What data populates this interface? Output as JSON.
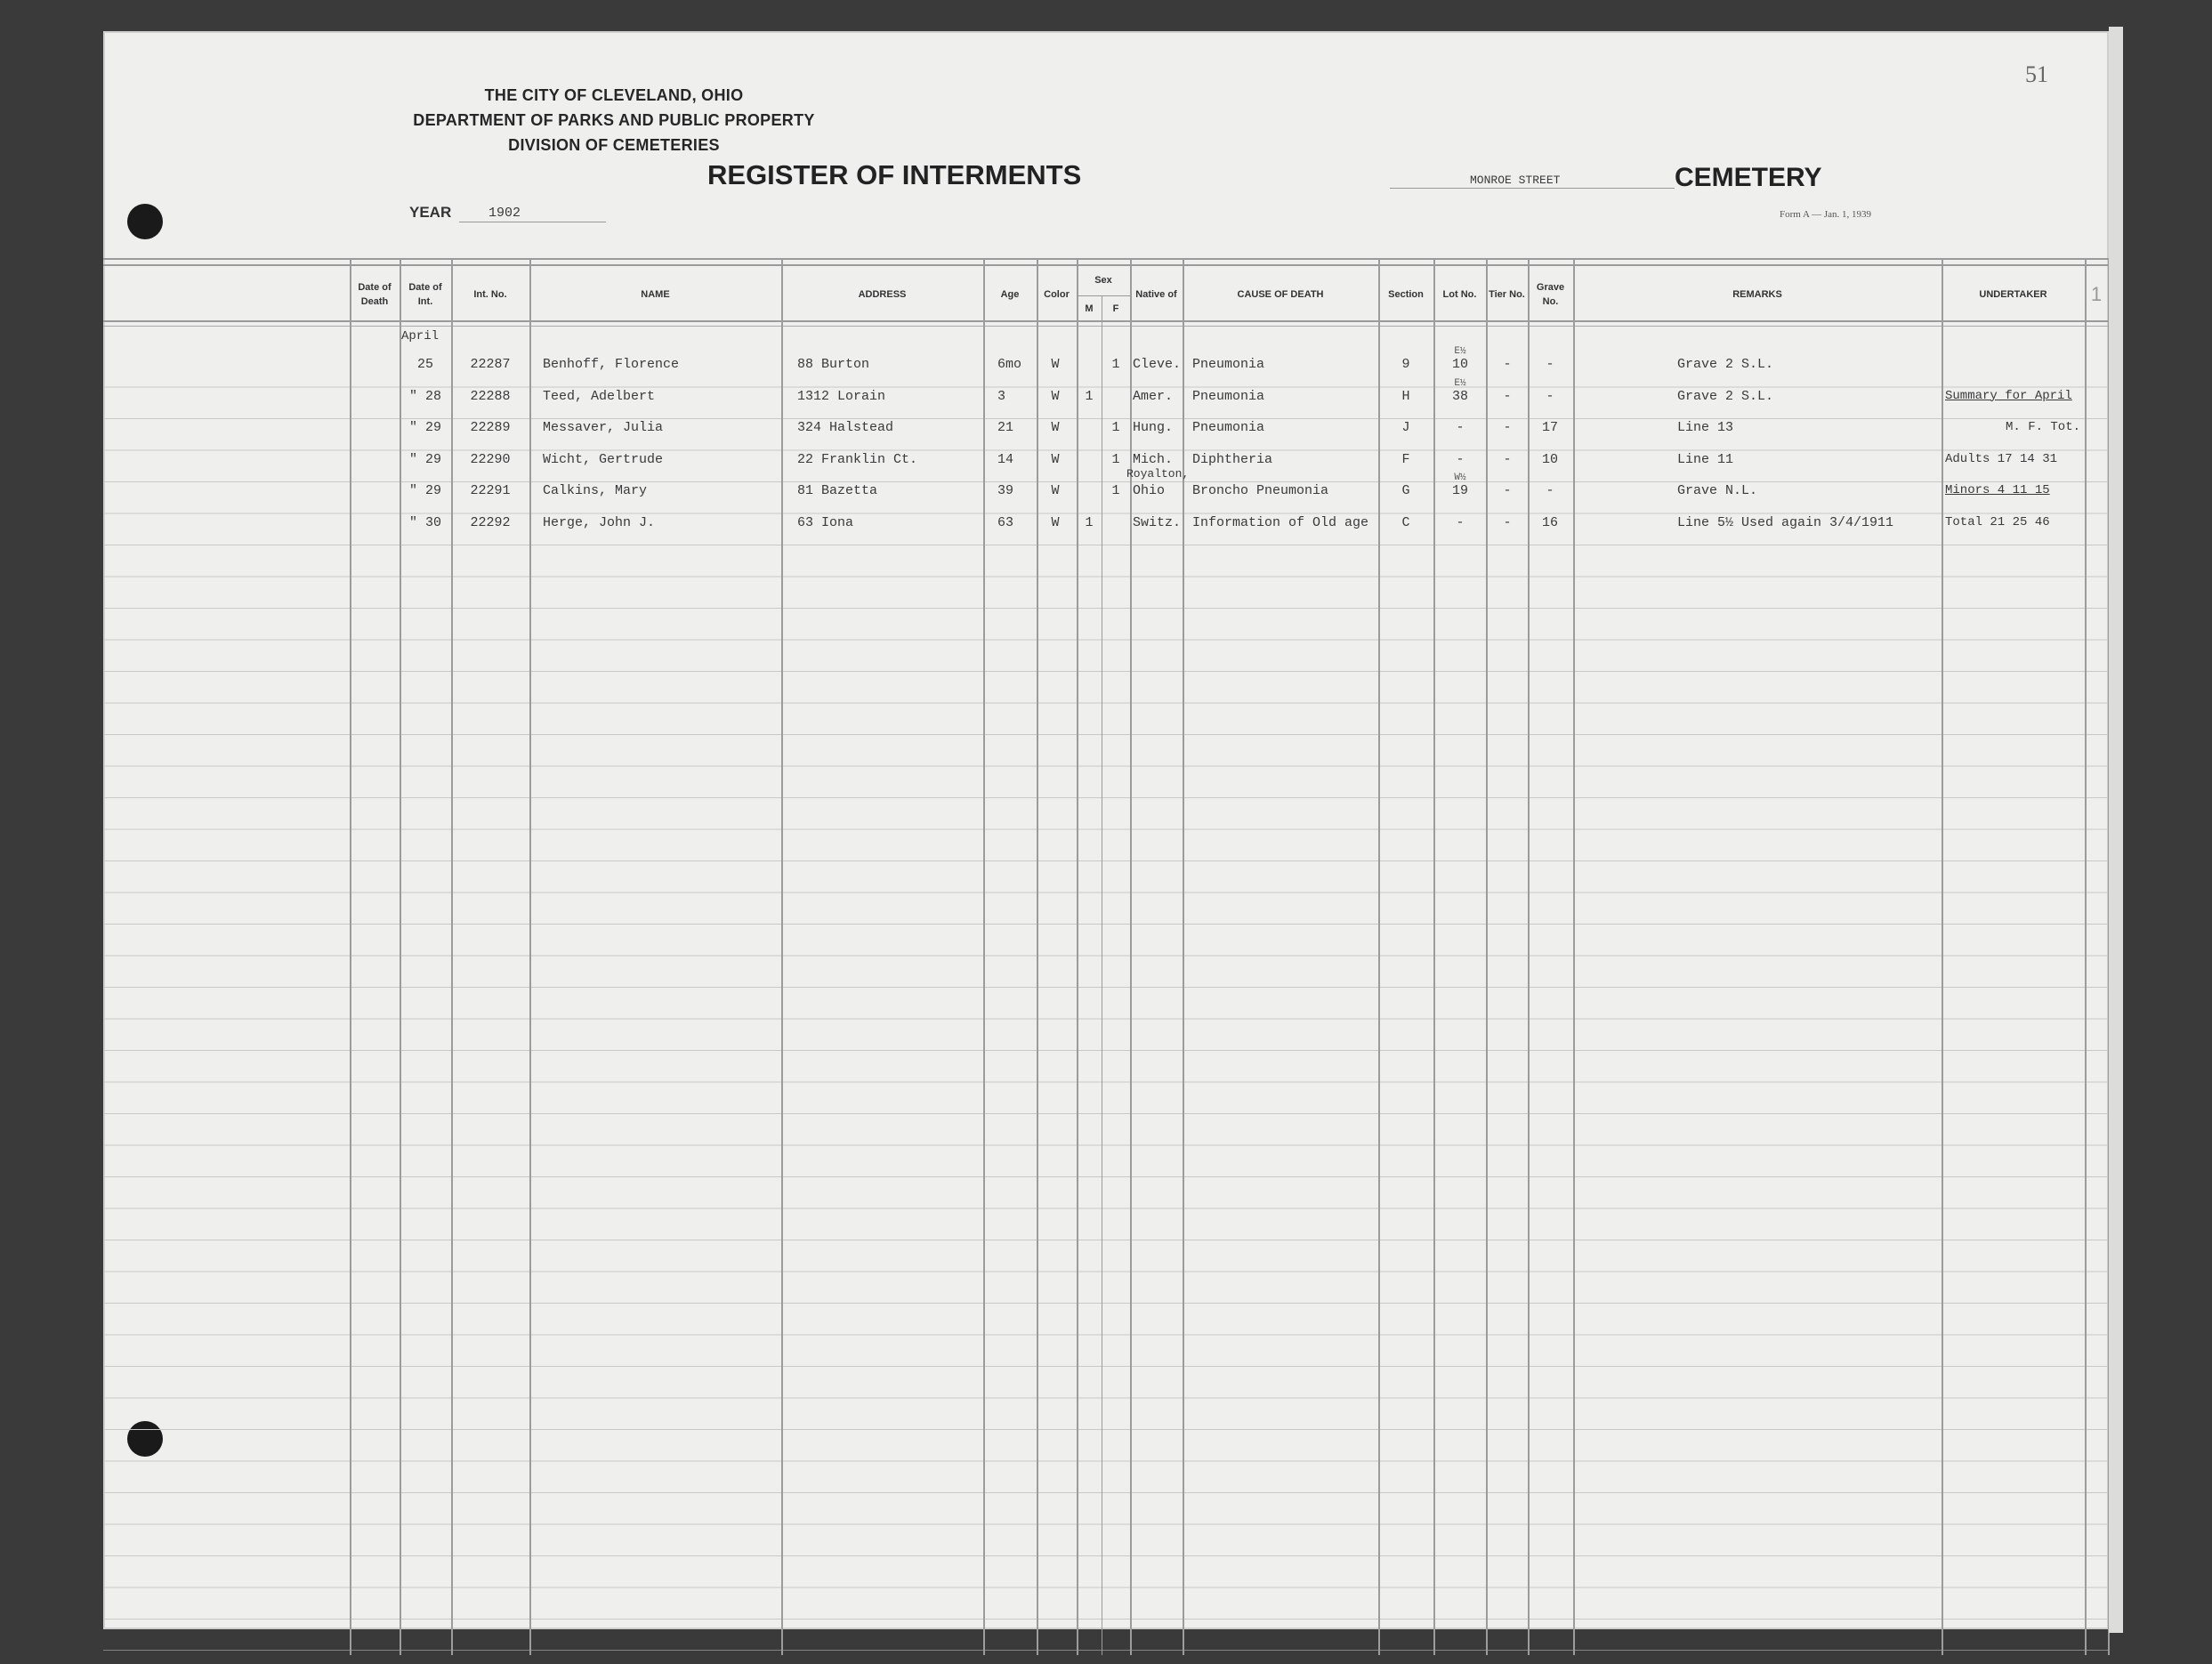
{
  "header": {
    "line1": "THE CITY OF CLEVELAND, OHIO",
    "line2": "DEPARTMENT OF PARKS AND PUBLIC PROPERTY",
    "line3": "DIVISION OF CEMETERIES",
    "title": "REGISTER OF INTERMENTS",
    "year_label": "YEAR",
    "year_value": "1902",
    "cemetery_name": "MONROE STREET",
    "cemetery_label": "CEMETERY",
    "form_note": "Form A — Jan. 1, 1939",
    "page_number": "51"
  },
  "columns": {
    "date_of_death": "Date of Death",
    "date_of_int": "Date of Int.",
    "int_no": "Int. No.",
    "name": "NAME",
    "address": "ADDRESS",
    "age": "Age",
    "color": "Color",
    "sex": "Sex",
    "m": "M",
    "f": "F",
    "native_of": "Native of",
    "cause": "CAUSE OF DEATH",
    "section": "Section",
    "lot": "Lot No.",
    "tier": "Tier No.",
    "grave": "Grave No.",
    "remarks": "REMARKS",
    "undertaker": "UNDERTAKER",
    "margin_mark": "1"
  },
  "month": "April",
  "rows": [
    {
      "date": "25",
      "int_no": "22287",
      "name": "Benhoff, Florence",
      "address": "88 Burton",
      "age": "6mo",
      "color": "W",
      "m": "",
      "f": "1",
      "native": "Cleve.",
      "native_above": "",
      "cause": "Pneumonia",
      "section": "9",
      "lot_frac": "E½",
      "lot": "10",
      "tier": "-",
      "grave": "-",
      "remarks": "Grave 2 S.L."
    },
    {
      "date": "\" 28",
      "int_no": "22288",
      "name": "Teed, Adelbert",
      "address": "1312 Lorain",
      "age": "3",
      "color": "W",
      "m": "1",
      "f": "",
      "native": "Amer.",
      "native_above": "",
      "cause": "Pneumonia",
      "section": "H",
      "lot_frac": "E½",
      "lot": "38",
      "tier": "-",
      "grave": "-",
      "remarks": "Grave 2 S.L."
    },
    {
      "date": "\" 29",
      "int_no": "22289",
      "name": "Messaver, Julia",
      "address": "324 Halstead",
      "age": "21",
      "color": "W",
      "m": "",
      "f": "1",
      "native": "Hung.",
      "native_above": "",
      "cause": "Pneumonia",
      "section": "J",
      "lot_frac": "",
      "lot": "-",
      "tier": "-",
      "grave": "17",
      "remarks": "Line 13"
    },
    {
      "date": "\" 29",
      "int_no": "22290",
      "name": "Wicht, Gertrude",
      "address": "22 Franklin Ct.",
      "age": "14",
      "color": "W",
      "m": "",
      "f": "1",
      "native": "Mich.",
      "native_above": "",
      "cause": "Diphtheria",
      "section": "F",
      "lot_frac": "",
      "lot": "-",
      "tier": "-",
      "grave": "10",
      "remarks": "Line 11"
    },
    {
      "date": "\" 29",
      "int_no": "22291",
      "name": "Calkins, Mary",
      "address": "81 Bazetta",
      "age": "39",
      "color": "W",
      "m": "",
      "f": "1",
      "native": "Ohio",
      "native_above": "Royalton,",
      "cause": "Broncho Pneumonia",
      "section": "G",
      "lot_frac": "W½",
      "lot": "19",
      "tier": "-",
      "grave": "-",
      "remarks": "Grave N.L."
    },
    {
      "date": "\" 30",
      "int_no": "22292",
      "name": "Herge, John J.",
      "address": "63 Iona",
      "age": "63",
      "color": "W",
      "m": "1",
      "f": "",
      "native": "Switz.",
      "native_above": "",
      "cause": "Information of Old age",
      "section": "C",
      "lot_frac": "",
      "lot": "-",
      "tier": "-",
      "grave": "16",
      "remarks": "Line 5½ Used again 3/4/1911"
    }
  ],
  "summary": {
    "title": "Summary for April",
    "head": "M.  F.  Tot.",
    "adults": "Adults 17 14  31",
    "minors": "Minors  4 11  15",
    "total": "Total  21 25  46"
  }
}
